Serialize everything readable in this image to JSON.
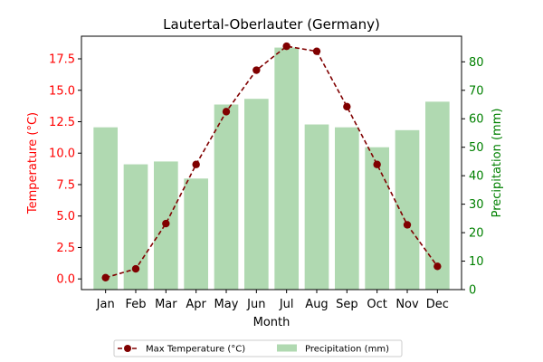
{
  "chart_data": {
    "type": "bar+line",
    "title": "Lautertal-Oberlauter (Germany)",
    "xlabel": "Month",
    "categories": [
      "Jan",
      "Feb",
      "Mar",
      "Apr",
      "May",
      "Jun",
      "Jul",
      "Aug",
      "Sep",
      "Oct",
      "Nov",
      "Dec"
    ],
    "left_axis": {
      "label": "Temperature (°C)",
      "color": "#ff0000",
      "ylim": [
        -0.85,
        19.3
      ],
      "ticks": [
        "0.0",
        "2.5",
        "5.0",
        "7.5",
        "10.0",
        "12.5",
        "15.0",
        "17.5"
      ]
    },
    "right_axis": {
      "label": "Precipitation (mm)",
      "color": "#008000",
      "ylim": [
        0,
        89
      ],
      "ticks": [
        "0",
        "10",
        "20",
        "30",
        "40",
        "50",
        "60",
        "70",
        "80"
      ]
    },
    "series": [
      {
        "name": "Max Temperature (°C)",
        "type": "line",
        "axis": "left",
        "color": "#800000",
        "style": "dashed",
        "marker": "circle",
        "values": [
          0.1,
          0.8,
          4.4,
          9.1,
          13.3,
          16.6,
          18.5,
          18.1,
          13.7,
          9.1,
          4.3,
          1.0
        ]
      },
      {
        "name": "Precipitation (mm)",
        "type": "bar",
        "axis": "right",
        "color": "#b0d9b1",
        "values": [
          57,
          44,
          45,
          39,
          65,
          67,
          85,
          58,
          57,
          50,
          56,
          66
        ]
      }
    ],
    "legend_position": "bottom-center",
    "grid": false
  }
}
